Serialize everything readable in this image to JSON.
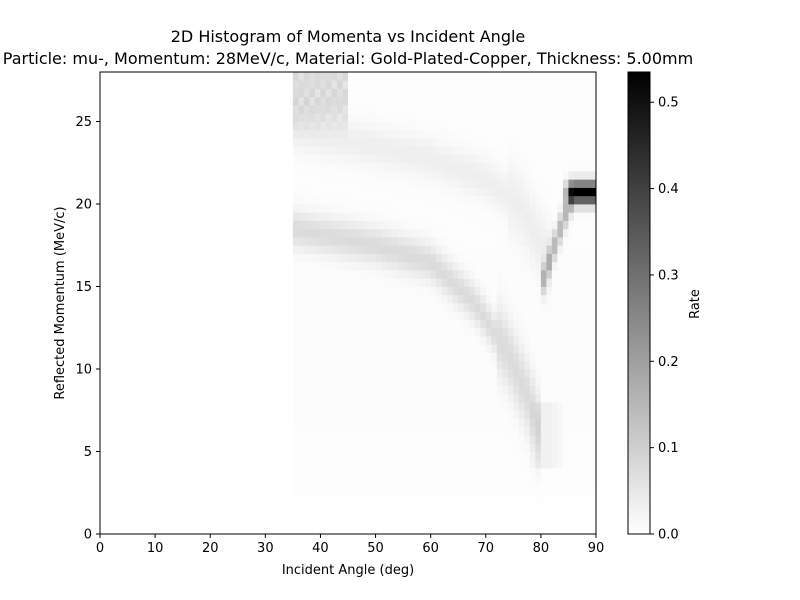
{
  "chart_data": {
    "type": "heatmap",
    "title": "2D Histogram of Momenta vs Incident Angle",
    "subtitle": "Particle: mu-, Momentum: 28MeV/c, Material: Gold-Plated-Copper, Thickness: 5.00mm",
    "xlabel": "Incident Angle (deg)",
    "ylabel": "Reflected Momentum (MeV/c)",
    "xlim": [
      0,
      90
    ],
    "ylim": [
      0,
      28
    ],
    "x_ticks": [
      0,
      10,
      20,
      30,
      40,
      50,
      60,
      70,
      80,
      90
    ],
    "y_ticks": [
      0,
      5,
      10,
      15,
      20,
      25
    ],
    "colorbar": {
      "label": "Rate",
      "range": [
        0,
        0.535
      ],
      "ticks": [
        0.0,
        0.1,
        0.2,
        0.3,
        0.4,
        0.5
      ],
      "colormap": "Greys"
    },
    "grid": false,
    "x_bin_count": 90,
    "y_bin_count": 56,
    "nonzero_region": {
      "angle_min": 35,
      "angle_max": 90
    },
    "features": [
      {
        "feature": "upper band",
        "points": [
          [
            35,
            24.5
          ],
          [
            50,
            23.5
          ],
          [
            60,
            22.8
          ],
          [
            70,
            21.5
          ],
          [
            76,
            20.0
          ],
          [
            80,
            17.5
          ],
          [
            82,
            16.5
          ]
        ],
        "rate": 0.03
      },
      {
        "feature": "lower band",
        "points": [
          [
            35,
            18.5
          ],
          [
            50,
            17.5
          ],
          [
            60,
            16.5
          ],
          [
            68,
            14.0
          ],
          [
            74,
            11.0
          ],
          [
            78,
            8.0
          ],
          [
            80,
            6.0
          ]
        ],
        "rate": 0.07
      },
      {
        "feature": "rising branch",
        "points": [
          [
            80,
            15.0
          ],
          [
            82,
            17.0
          ],
          [
            84,
            19.0
          ],
          [
            86,
            20.7
          ]
        ],
        "rate": 0.15
      },
      {
        "feature": "peak",
        "angle_range": [
          85,
          90
        ],
        "momentum": 20.7,
        "rate": 0.535
      },
      {
        "feature": "top cluster",
        "angle_range": [
          35,
          45
        ],
        "momentum_range": [
          25,
          28
        ],
        "rate": 0.08
      }
    ]
  }
}
